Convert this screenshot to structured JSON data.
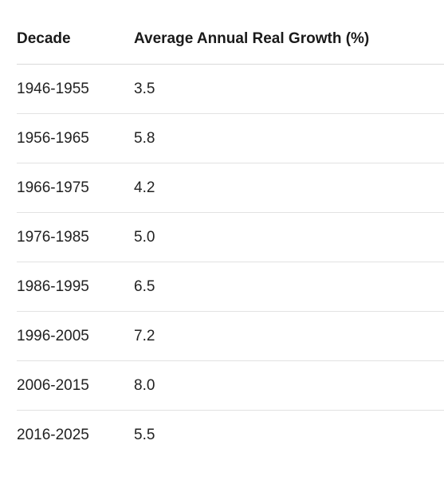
{
  "table": {
    "headers": {
      "decade": "Decade",
      "growth": "Average Annual Real Growth (%)"
    },
    "rows": [
      {
        "decade": "1946-1955",
        "growth": "3.5"
      },
      {
        "decade": "1956-1965",
        "growth": "5.8"
      },
      {
        "decade": "1966-1975",
        "growth": "4.2"
      },
      {
        "decade": "1976-1985",
        "growth": "5.0"
      },
      {
        "decade": "1986-1995",
        "growth": "6.5"
      },
      {
        "decade": "1996-2005",
        "growth": "7.2"
      },
      {
        "decade": "2006-2015",
        "growth": "8.0"
      },
      {
        "decade": "2016-2025",
        "growth": "5.5"
      }
    ]
  }
}
